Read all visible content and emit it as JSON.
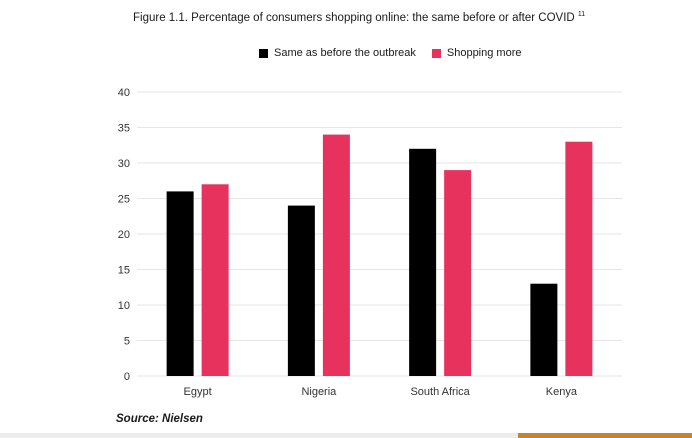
{
  "figure": {
    "title": "Figure 1.1. Percentage of consumers shopping online: the same before or after COVID",
    "title_sup": "11",
    "source": "Source: Nielsen"
  },
  "chart_data": {
    "type": "bar",
    "title": "Figure 1.1. Percentage of consumers shopping online: the same before or after COVID",
    "xlabel": "",
    "ylabel": "",
    "categories": [
      "Egypt",
      "Nigeria",
      "South Africa",
      "Kenya"
    ],
    "series": [
      {
        "name": "Same as before the outbreak",
        "color": "#000000",
        "values": [
          26,
          24,
          32,
          13
        ]
      },
      {
        "name": "Shopping more",
        "color": "#e8325e",
        "values": [
          27,
          34,
          29,
          33
        ]
      }
    ],
    "ylim": [
      0,
      40
    ],
    "yticks": [
      0,
      5,
      10,
      15,
      20,
      25,
      30,
      35,
      40
    ],
    "grid": true,
    "legend_position": "top"
  }
}
